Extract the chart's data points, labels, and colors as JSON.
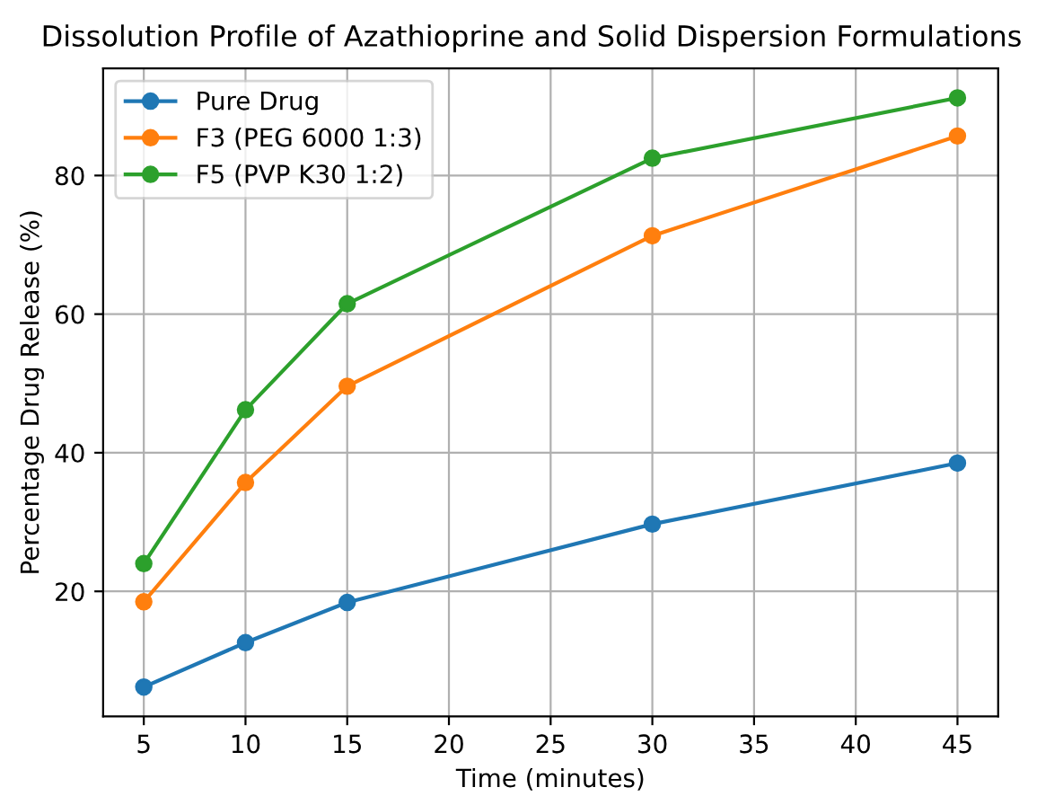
{
  "chart_data": {
    "type": "line",
    "title": "Dissolution Profile of Azathioprine and Solid Dispersion Formulations",
    "xlabel": "Time (minutes)",
    "ylabel": "Percentage Drug Release (%)",
    "x": [
      5,
      10,
      15,
      30,
      45
    ],
    "series": [
      {
        "name": "Pure Drug",
        "color": "#1f77b4",
        "values": [
          6.2,
          12.6,
          18.4,
          29.7,
          38.5
        ]
      },
      {
        "name": "F3 (PEG 6000 1:3)",
        "color": "#ff7f0e",
        "values": [
          18.5,
          35.7,
          49.6,
          71.3,
          85.7
        ]
      },
      {
        "name": "F5 (PVP K30 1:2)",
        "color": "#2ca02c",
        "values": [
          24.0,
          46.2,
          61.5,
          82.5,
          91.2
        ]
      }
    ],
    "xlim": [
      3,
      47
    ],
    "xticks": [
      5,
      10,
      15,
      20,
      25,
      30,
      35,
      40,
      45
    ],
    "ylim": [
      1.95,
      95.45
    ],
    "yticks": [
      20,
      40,
      60,
      80
    ],
    "grid": true,
    "legend": "top left",
    "marker": "circle",
    "line_style": "solid"
  }
}
